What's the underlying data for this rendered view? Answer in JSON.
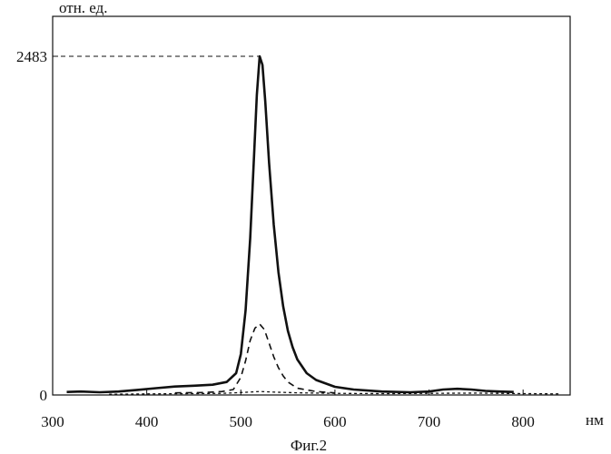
{
  "chart_data": {
    "type": "line",
    "ylabel": "отн. ед.",
    "xlabel": "нм",
    "caption": "Фиг.2",
    "xlim": [
      300,
      850
    ],
    "ylim": [
      0,
      2483
    ],
    "x_ticks": [
      300,
      400,
      500,
      600,
      700,
      800
    ],
    "y_ticks": [
      0,
      2483
    ],
    "y_tick_labels": [
      "0",
      "2483"
    ],
    "grid": false,
    "peak_marker": {
      "x": 520,
      "y": 2483
    },
    "series": [
      {
        "style": "solid",
        "color": "#111111",
        "points": [
          [
            315,
            22
          ],
          [
            330,
            25
          ],
          [
            350,
            20
          ],
          [
            370,
            25
          ],
          [
            390,
            37
          ],
          [
            410,
            50
          ],
          [
            430,
            62
          ],
          [
            450,
            68
          ],
          [
            470,
            75
          ],
          [
            485,
            95
          ],
          [
            495,
            160
          ],
          [
            500,
            300
          ],
          [
            505,
            620
          ],
          [
            510,
            1150
          ],
          [
            514,
            1750
          ],
          [
            517,
            2200
          ],
          [
            520,
            2483
          ],
          [
            523,
            2420
          ],
          [
            526,
            2150
          ],
          [
            530,
            1700
          ],
          [
            535,
            1250
          ],
          [
            540,
            900
          ],
          [
            545,
            650
          ],
          [
            550,
            470
          ],
          [
            555,
            350
          ],
          [
            560,
            260
          ],
          [
            570,
            160
          ],
          [
            580,
            110
          ],
          [
            600,
            60
          ],
          [
            620,
            40
          ],
          [
            650,
            25
          ],
          [
            680,
            20
          ],
          [
            700,
            25
          ],
          [
            715,
            40
          ],
          [
            730,
            45
          ],
          [
            745,
            40
          ],
          [
            760,
            30
          ],
          [
            775,
            25
          ],
          [
            790,
            22
          ]
        ]
      },
      {
        "style": "dashed",
        "color": "#111111",
        "points": [
          [
            430,
            15
          ],
          [
            460,
            18
          ],
          [
            480,
            25
          ],
          [
            492,
            40
          ],
          [
            500,
            130
          ],
          [
            505,
            250
          ],
          [
            510,
            400
          ],
          [
            515,
            490
          ],
          [
            520,
            520
          ],
          [
            525,
            480
          ],
          [
            530,
            380
          ],
          [
            535,
            280
          ],
          [
            540,
            200
          ],
          [
            545,
            140
          ],
          [
            550,
            95
          ],
          [
            560,
            50
          ],
          [
            580,
            25
          ],
          [
            600,
            15
          ]
        ]
      },
      {
        "style": "dotted",
        "color": "#111111",
        "points": [
          [
            360,
            5
          ],
          [
            400,
            8
          ],
          [
            450,
            10
          ],
          [
            480,
            12
          ],
          [
            500,
            18
          ],
          [
            520,
            25
          ],
          [
            540,
            20
          ],
          [
            560,
            16
          ],
          [
            600,
            12
          ],
          [
            650,
            10
          ],
          [
            700,
            12
          ],
          [
            750,
            14
          ],
          [
            800,
            10
          ],
          [
            840,
            8
          ]
        ]
      }
    ]
  }
}
